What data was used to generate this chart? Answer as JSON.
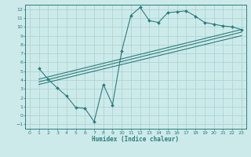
{
  "title": "",
  "xlabel": "Humidex (Indice chaleur)",
  "bg_color": "#cdeaea",
  "line_color": "#2d7d7d",
  "grid_color": "#afd4d4",
  "xlim": [
    -0.5,
    23.5
  ],
  "ylim": [
    -1.5,
    12.5
  ],
  "xticks": [
    0,
    1,
    2,
    3,
    4,
    5,
    6,
    7,
    8,
    9,
    10,
    11,
    12,
    13,
    14,
    15,
    16,
    17,
    18,
    19,
    20,
    21,
    22,
    23
  ],
  "yticks": [
    -1,
    0,
    1,
    2,
    3,
    4,
    5,
    6,
    7,
    8,
    9,
    10,
    11,
    12
  ],
  "curve1_x": [
    1,
    2,
    3,
    4,
    5,
    6,
    7,
    8,
    9,
    10,
    11,
    12,
    13,
    14,
    15,
    16,
    17,
    18,
    19,
    20,
    21,
    22,
    23
  ],
  "curve1_y": [
    5.3,
    4.1,
    3.1,
    2.2,
    0.9,
    0.8,
    -0.7,
    3.5,
    1.2,
    7.3,
    11.3,
    12.2,
    10.7,
    10.5,
    11.6,
    11.7,
    11.8,
    11.2,
    10.5,
    10.3,
    10.1,
    10.0,
    9.7
  ],
  "line1_x": [
    1,
    23
  ],
  "line1_y": [
    4.1,
    9.7
  ],
  "line2_x": [
    1,
    23
  ],
  "line2_y": [
    3.8,
    9.4
  ],
  "line3_x": [
    1,
    23
  ],
  "line3_y": [
    3.5,
    9.0
  ]
}
